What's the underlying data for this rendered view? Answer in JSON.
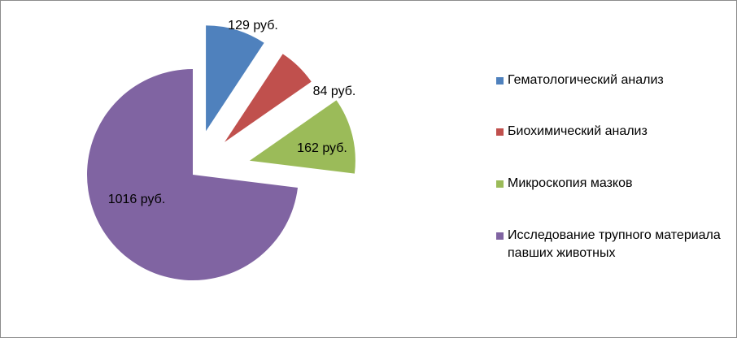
{
  "chart_data": {
    "type": "pie",
    "title": "",
    "unit": "руб.",
    "exploded": true,
    "legend_position": "right",
    "series": [
      {
        "categories": [
          "Гематологический анализ",
          "Биохимический анализ",
          "Микроскопия мазков",
          "Исследование трупного материала павших животных"
        ],
        "values": [
          129,
          84,
          162,
          1016
        ],
        "data_labels": [
          "129 руб.",
          "84 руб.",
          "162  руб.",
          "1016 руб."
        ],
        "colors": [
          "#4f81bd",
          "#c0504d",
          "#9bbb59",
          "#8064a2"
        ]
      }
    ]
  },
  "legend": {
    "items": [
      {
        "label": "Гематологический анализ",
        "color": "#4f81bd"
      },
      {
        "label": "Биохимический анализ",
        "color": "#c0504d"
      },
      {
        "label": "Микроскопия мазков",
        "color": "#9bbb59"
      },
      {
        "label": "Исследование трупного материала павших животных",
        "color": "#8064a2"
      }
    ]
  }
}
